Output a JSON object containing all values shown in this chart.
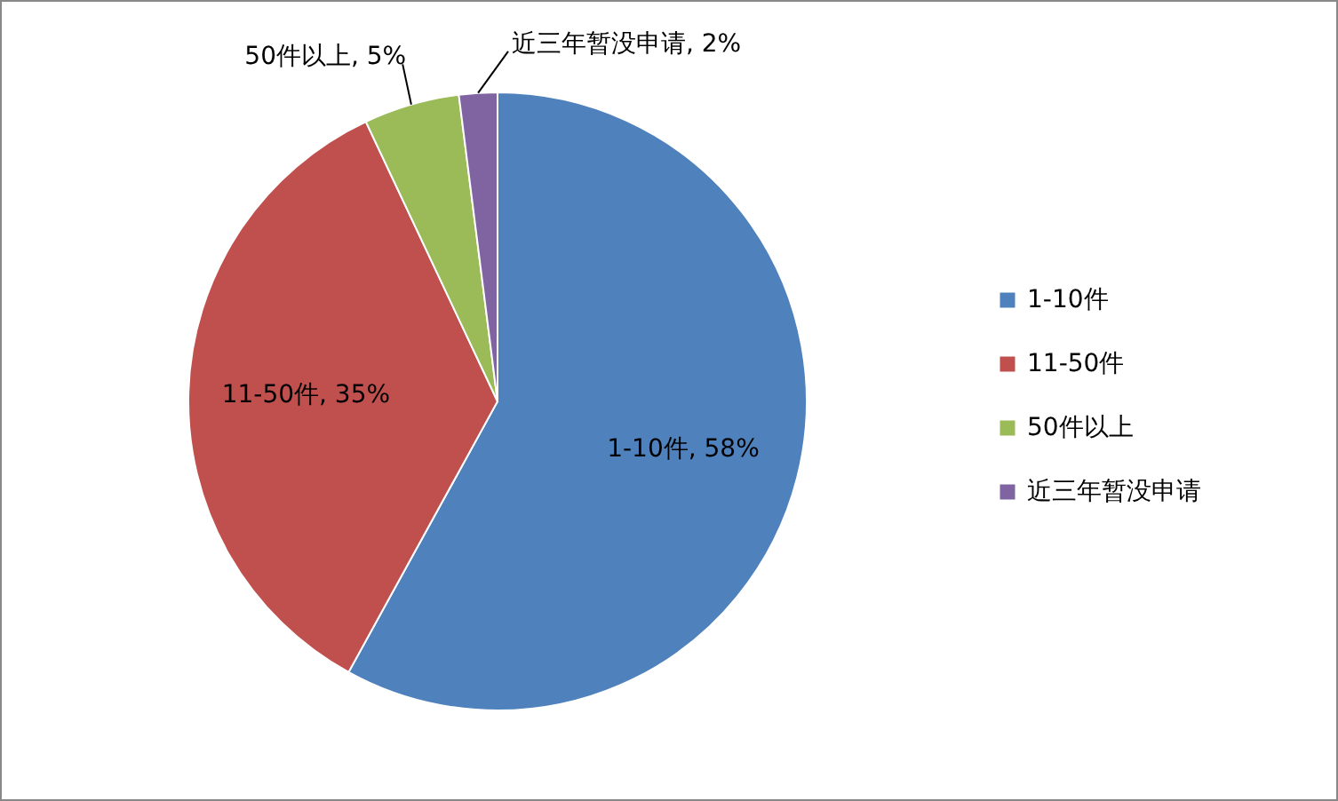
{
  "chart_data": {
    "type": "pie",
    "categories": [
      "1-10件",
      "11-50件",
      "50件以上",
      "近三年暂没申请"
    ],
    "values": [
      58,
      35,
      5,
      2
    ],
    "colors": [
      "#4f81bd",
      "#c0504d",
      "#9bbb59",
      "#8064a2"
    ],
    "value_labels": [
      "1-10件, 58%",
      "11-50件, 35%",
      "50件以上, 5%",
      "近三年暂没申请, 2%"
    ],
    "legend": "right"
  }
}
